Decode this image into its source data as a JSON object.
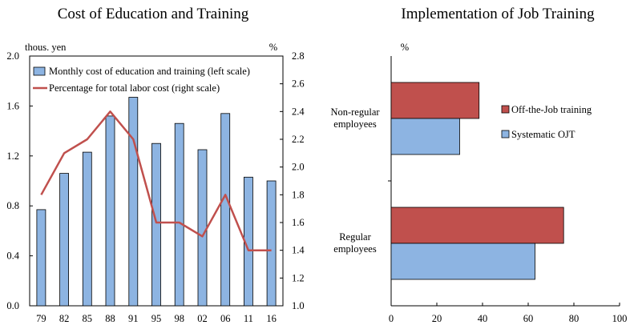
{
  "chart_data": [
    {
      "type": "bar+line",
      "title": "Cost of Education and Training",
      "left_unit": "thous. yen",
      "right_unit": "%",
      "categories": [
        "79",
        "82",
        "85",
        "88",
        "91",
        "95",
        "98",
        "02",
        "06",
        "11",
        "16"
      ],
      "series": [
        {
          "name": "Monthly cost of education and training (left scale)",
          "kind": "bar",
          "axis": "left",
          "color": "#8db4e2",
          "values": [
            0.77,
            1.06,
            1.23,
            1.52,
            1.67,
            1.3,
            1.46,
            1.25,
            1.54,
            1.03,
            1.0
          ]
        },
        {
          "name": "Percentage for total labor cost (right scale)",
          "kind": "line",
          "axis": "right",
          "color": "#c0504d",
          "values": [
            1.8,
            2.1,
            2.2,
            2.4,
            2.2,
            1.6,
            1.6,
            1.5,
            1.8,
            1.4,
            1.4
          ]
        }
      ],
      "left_axis": {
        "min": 0.0,
        "max": 2.0,
        "ticks": [
          "0.0",
          "0.4",
          "0.8",
          "1.2",
          "1.6",
          "2.0"
        ]
      },
      "right_axis": {
        "min": 1.0,
        "max": 2.8,
        "ticks": [
          "1.0",
          "1.2",
          "1.4",
          "1.6",
          "1.8",
          "2.0",
          "2.2",
          "2.4",
          "2.6",
          "2.8"
        ]
      },
      "legend_position": "top-left",
      "grid": false
    },
    {
      "type": "horizontal-bar",
      "title": "Implementation of Job Training",
      "unit": "%",
      "categories": [
        "Non-regular employees",
        "Regular employees"
      ],
      "category_lines": [
        [
          "Non-regular",
          "employees"
        ],
        [
          "Regular",
          "employees"
        ]
      ],
      "series": [
        {
          "name": "Off-the-Job training",
          "color": "#c0504d",
          "values": [
            38.5,
            75.5
          ]
        },
        {
          "name": "Systematic OJT",
          "color": "#8db4e2",
          "values": [
            30.0,
            63.0
          ]
        }
      ],
      "x_axis": {
        "min": 0,
        "max": 100,
        "ticks": [
          "0",
          "20",
          "40",
          "60",
          "80",
          "100"
        ]
      },
      "legend_position": "right-upper",
      "grid": false
    }
  ]
}
